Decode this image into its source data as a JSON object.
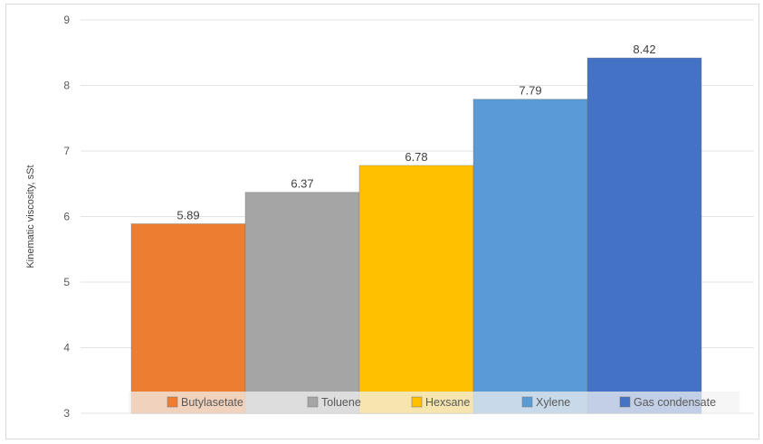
{
  "chart_data": {
    "type": "bar",
    "ylabel": "Kinematic viscosity, sSt",
    "ylim": [
      3,
      9
    ],
    "yticks": [
      3,
      4,
      5,
      6,
      7,
      8,
      9
    ],
    "grid": true,
    "legend_position": "bottom",
    "series": [
      {
        "name": "Butylasetate",
        "value": 5.89,
        "label": "5.89",
        "color": "#ED7D31"
      },
      {
        "name": "Toluene",
        "value": 6.37,
        "label": "6.37",
        "color": "#A5A5A5"
      },
      {
        "name": "Hexsane",
        "value": 6.78,
        "label": "6.78",
        "color": "#FFC000"
      },
      {
        "name": "Xylene",
        "value": 7.79,
        "label": "7.79",
        "color": "#5B9BD5"
      },
      {
        "name": "Gas condensate",
        "value": 8.42,
        "label": "8.42",
        "color": "#4472C4"
      }
    ]
  }
}
